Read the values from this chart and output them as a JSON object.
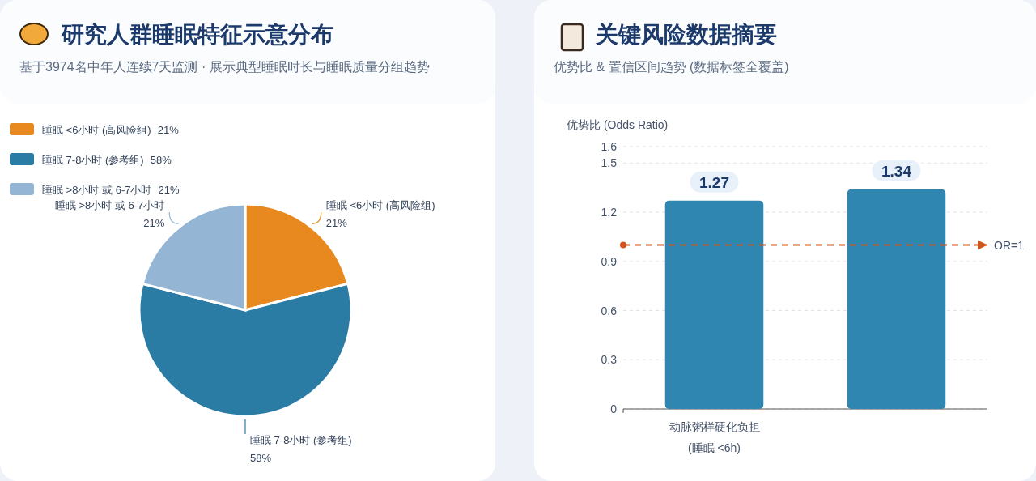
{
  "chart_data": [
    {
      "type": "pie",
      "title": "研究人群睡眠特征示意分布",
      "subtitle": "基于3974名中年人连续7天监测 · 展示典型睡眠时长与睡眠质量分组趋势",
      "categories": [
        "睡眠 <6小时 (高风险组)",
        "睡眠 7-8小时 (参考组)",
        "睡眠 >8小时 或 6-7小时"
      ],
      "values": [
        21,
        58,
        21
      ],
      "value_labels": [
        "21%",
        "58%",
        "21%"
      ],
      "colors": [
        "#e8891f",
        "#2a7ca5",
        "#94b6d4"
      ],
      "legend": "top left"
    },
    {
      "type": "bar",
      "title": "关键风险数据摘要",
      "subtitle": "优势比 & 置信区间趋势 (数据标签全覆盖)",
      "ylabel": "优势比 (Odds Ratio)",
      "categories": [
        "动脉粥样硬化负担 (睡眠 <6h)",
        null
      ],
      "values": [
        1.27,
        1.34
      ],
      "color": "#2f86b0",
      "data_labels": true,
      "ylim": [
        0,
        1.6
      ],
      "yticks": [
        0,
        0.3,
        0.6,
        0.9,
        1.2,
        1.5,
        1.6
      ],
      "grid": "y",
      "ref_lines": [
        {
          "axis": "y",
          "value": 1,
          "label": "OR=1",
          "color": "#d0541c",
          "line_style": "dashed"
        }
      ]
    }
  ]
}
